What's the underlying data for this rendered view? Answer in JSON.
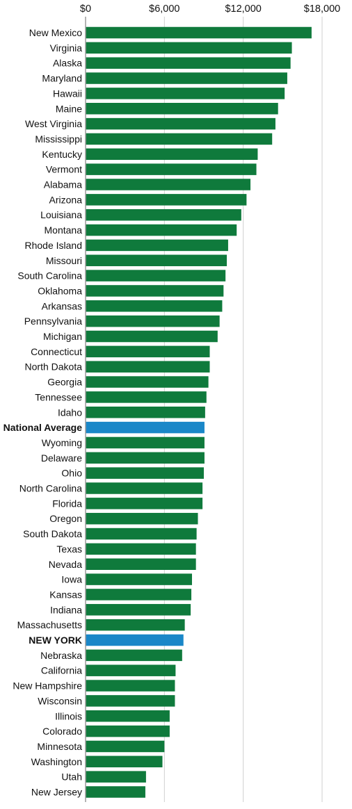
{
  "chart_data": {
    "type": "bar",
    "orientation": "horizontal",
    "title": "",
    "xlabel": "",
    "ylabel": "",
    "xlim": [
      0,
      19000
    ],
    "x_ticks": [
      {
        "value": 0,
        "label": "$0"
      },
      {
        "value": 6000,
        "label": "$6,000"
      },
      {
        "value": 12000,
        "label": "$12,000"
      },
      {
        "value": 18000,
        "label": "$18,000"
      }
    ],
    "grid": true,
    "legend": "none",
    "colors": {
      "default": "#0f7a3c",
      "highlight": "#1a87c8"
    },
    "categories": [
      "New Mexico",
      "Virginia",
      "Alaska",
      "Maryland",
      "Hawaii",
      "Maine",
      "West Virginia",
      "Mississippi",
      "Kentucky",
      "Vermont",
      "Alabama",
      "Arizona",
      "Louisiana",
      "Montana",
      "Rhode Island",
      "Missouri",
      "South Carolina",
      "Oklahoma",
      "Arkansas",
      "Pennsylvania",
      "Michigan",
      "Connecticut",
      "North Dakota",
      "Georgia",
      "Tennessee",
      "Idaho",
      "National Average",
      "Wyoming",
      "Delaware",
      "Ohio",
      "North Carolina",
      "Florida",
      "Oregon",
      "South Dakota",
      "Texas",
      "Nevada",
      "Iowa",
      "Kansas",
      "Indiana",
      "Massachusetts",
      "NEW YORK",
      "Nebraska",
      "California",
      "New Hampshire",
      "Wisconsin",
      "Illinois",
      "Colorado",
      "Minnesota",
      "Washington",
      "Utah",
      "New Jersey"
    ],
    "values": [
      17200,
      15700,
      15600,
      15350,
      15150,
      14650,
      14450,
      14200,
      13100,
      13000,
      12550,
      12250,
      11850,
      11500,
      10850,
      10750,
      10650,
      10500,
      10400,
      10200,
      10050,
      9450,
      9450,
      9350,
      9200,
      9100,
      9050,
      9050,
      9050,
      9000,
      8900,
      8900,
      8550,
      8450,
      8400,
      8400,
      8100,
      8050,
      8000,
      7550,
      7450,
      7350,
      6850,
      6800,
      6800,
      6400,
      6400,
      6000,
      5850,
      4600,
      4550
    ],
    "highlighted": [
      "National Average",
      "NEW YORK"
    ]
  }
}
